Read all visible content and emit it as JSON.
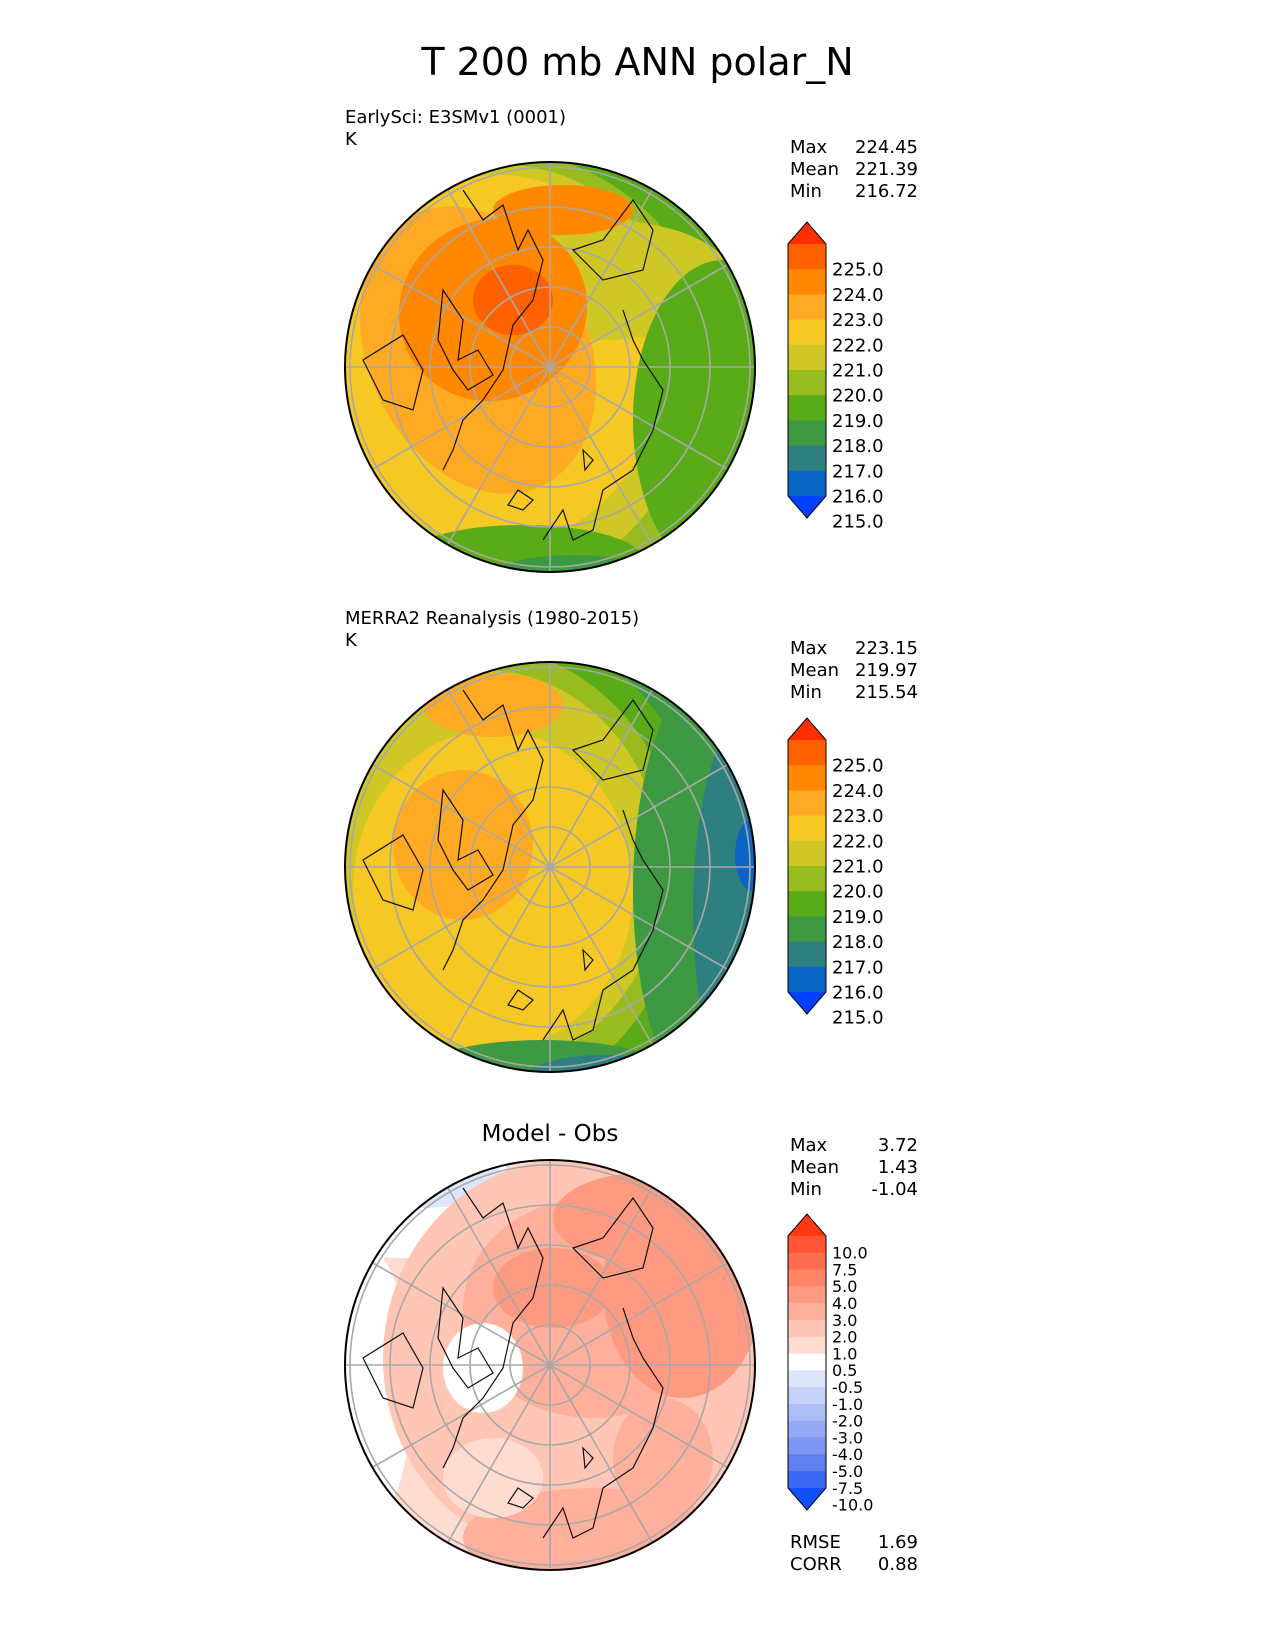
{
  "chart_data": [
    {
      "type": "heatmap",
      "projection": "polar_N",
      "title": "EarlySci: E3SMv1 (0001)",
      "units": "K",
      "stats": {
        "max": "224.45",
        "mean": "221.39",
        "min": "216.72"
      },
      "colorbar": {
        "levels": [
          "225.0",
          "224.0",
          "223.0",
          "222.0",
          "221.0",
          "220.0",
          "219.0",
          "218.0",
          "217.0",
          "216.0",
          "215.0"
        ],
        "colors": [
          "#ff3000",
          "#ff6000",
          "#ff8800",
          "#ffaa22",
          "#f5c824",
          "#cfc726",
          "#98bb20",
          "#5aab18",
          "#3e9a42",
          "#2e8080",
          "#0b65c4",
          "#0040ff"
        ]
      }
    },
    {
      "type": "heatmap",
      "projection": "polar_N",
      "title": "MERRA2 Reanalysis (1980-2015)",
      "units": "K",
      "stats": {
        "max": "223.15",
        "mean": "219.97",
        "min": "215.54"
      },
      "colorbar": {
        "levels": [
          "225.0",
          "224.0",
          "223.0",
          "222.0",
          "221.0",
          "220.0",
          "219.0",
          "218.0",
          "217.0",
          "216.0",
          "215.0"
        ],
        "colors": [
          "#ff3000",
          "#ff6000",
          "#ff8800",
          "#ffaa22",
          "#f5c824",
          "#cfc726",
          "#98bb20",
          "#5aab18",
          "#3e9a42",
          "#2e8080",
          "#0b65c4",
          "#0040ff"
        ]
      }
    },
    {
      "type": "heatmap",
      "projection": "polar_N",
      "title": "Model - Obs",
      "stats": {
        "max": "3.72",
        "mean": "1.43",
        "min": "-1.04"
      },
      "metrics": {
        "rmse": "1.69",
        "corr": "0.88"
      },
      "colorbar": {
        "levels": [
          "10.0",
          "7.5",
          "5.0",
          "4.0",
          "3.0",
          "2.0",
          "1.0",
          "0.5",
          "-0.5",
          "-1.0",
          "-2.0",
          "-3.0",
          "-4.0",
          "-5.0",
          "-7.5",
          "-10.0"
        ],
        "colors": [
          "#ff3a12",
          "#ff5535",
          "#ff6d50",
          "#ff8468",
          "#ff9a82",
          "#ffb09c",
          "#ffc6b6",
          "#ffdcd0",
          "#ffffff",
          "#dde5fa",
          "#c5d1f8",
          "#adbdf6",
          "#95a9f4",
          "#7d95f2",
          "#6080f2",
          "#3a68f5",
          "#1050fa"
        ]
      }
    }
  ],
  "page": {
    "title": "T 200 mb ANN polar_N",
    "stat_labels": {
      "max": "Max",
      "mean": "Mean",
      "min": "Min",
      "rmse": "RMSE",
      "corr": "CORR"
    }
  }
}
